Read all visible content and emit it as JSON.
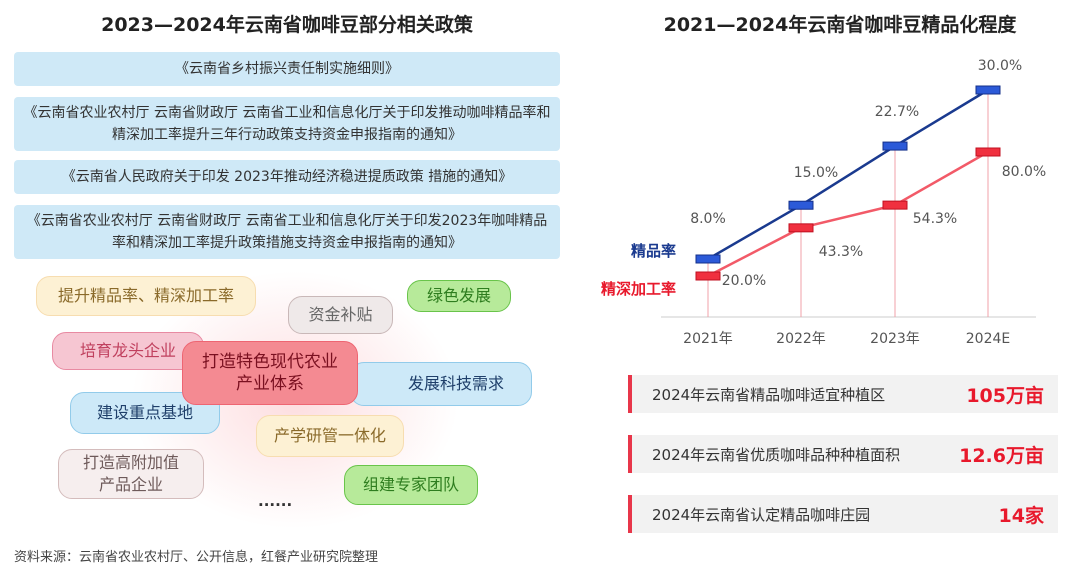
{
  "left": {
    "title": "2023—2024年云南省咖啡豆部分相关政策",
    "policies": [
      "《云南省乡村振兴责任制实施细则》",
      "《云南省农业农村厅 云南省财政厅 云南省工业和信息化厅关于印发推动咖啡精品率和精深加工率提升三年行动政策支持资金申报指南的通知》",
      "《云南省人民政府关于印发 2023年推动经济稳进提质政策 措施的通知》",
      "《云南省农业农村厅 云南省财政厅 云南省工业和信息化厅关于印发2023年咖啡精品率和精深加工率提升政策措施支持资金申报指南的通知》"
    ],
    "bubbles": {
      "center": "打造特色现代农业产业体系",
      "b1": "提升精品率、精深加工率",
      "b2": "资金补贴",
      "b3": "绿色发展",
      "b4": "培育龙头企业",
      "b5": "发展科技需求",
      "b6": "建设重点基地",
      "b7": "产学研管一体化",
      "b8": "打造高附加值产品企业",
      "b9": "组建专家团队",
      "more": "......"
    },
    "source": "资料来源：云南省农业农村厅、公开信息，红餐产业研究院整理"
  },
  "chart_data": {
    "type": "line",
    "title": "2021—2024年云南省咖啡豆精品化程度",
    "categories": [
      "2021年",
      "2022年",
      "2023年",
      "2024E"
    ],
    "series": [
      {
        "name": "精品率",
        "values": [
          8.0,
          15.0,
          22.7,
          30.0
        ],
        "labels": [
          "8.0%",
          "15.0%",
          "22.7%",
          "30.0%"
        ],
        "color": "#1a3a8f"
      },
      {
        "name": "精深加工率",
        "values": [
          20.0,
          43.3,
          54.3,
          80.0
        ],
        "labels": [
          "20.0%",
          "43.3%",
          "54.3%",
          "80.0%"
        ],
        "color": "#f0515f"
      }
    ],
    "grid": false,
    "legend": "left"
  },
  "stats": [
    {
      "label": "2024年云南省精品咖啡适宜种植区",
      "value": "105万亩"
    },
    {
      "label": "2024年云南省优质咖啡品种种植面积",
      "value": "12.6万亩"
    },
    {
      "label": "2024年云南省认定精品咖啡庄园",
      "value": "14家"
    }
  ],
  "watermark": "红餐产业研究院"
}
